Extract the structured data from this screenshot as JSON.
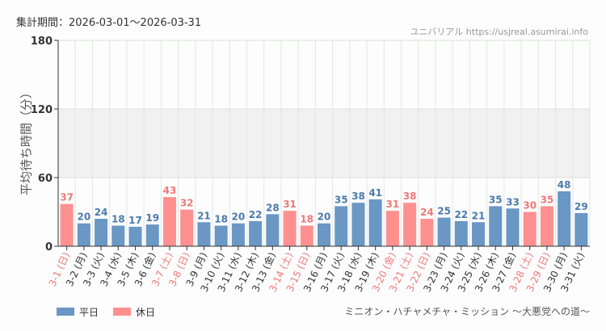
{
  "period_label": "集計期間：2026-03-01〜2026-03-31",
  "watermark": "ユニバリアル  https://usjreal.asumirai.info",
  "footer_title": "ミニオン・ハチャメチャ・ミッション 〜大悪党への道〜",
  "colors": {
    "weekday": "#6a97c4",
    "holiday": "#ff9090",
    "holiday_text": "#f07878"
  },
  "chart_data": {
    "type": "bar",
    "ylabel": "平均待ち時間（分）",
    "ylim": [
      0,
      180
    ],
    "yticks": [
      0,
      60,
      120,
      180
    ],
    "shaded_band": [
      60,
      120
    ],
    "grid": true,
    "legend_position": "bottom-left",
    "legend": [
      {
        "name": "平日",
        "color": "#6a97c4"
      },
      {
        "name": "休日",
        "color": "#ff9090"
      }
    ],
    "categories": [
      "3-1 (日)",
      "3-2 (月)",
      "3-3 (火)",
      "3-4 (水)",
      "3-5 (木)",
      "3-6 (金)",
      "3-7 (土)",
      "3-8 (日)",
      "3-9 (月)",
      "3-10 (火)",
      "3-11 (水)",
      "3-12 (木)",
      "3-13 (金)",
      "3-14 (土)",
      "3-15 (日)",
      "3-16 (月)",
      "3-17 (火)",
      "3-18 (水)",
      "3-19 (木)",
      "3-20 (金)",
      "3-21 (土)",
      "3-22 (日)",
      "3-23 (月)",
      "3-24 (火)",
      "3-25 (水)",
      "3-26 (木)",
      "3-27 (金)",
      "3-28 (土)",
      "3-29 (日)",
      "3-30 (月)",
      "3-31 (火)"
    ],
    "values": [
      37,
      20,
      24,
      18,
      17,
      19,
      43,
      32,
      21,
      18,
      20,
      22,
      28,
      31,
      18,
      20,
      35,
      38,
      41,
      31,
      38,
      24,
      25,
      22,
      21,
      35,
      33,
      30,
      35,
      48,
      29
    ],
    "holiday": [
      true,
      false,
      false,
      false,
      false,
      false,
      true,
      true,
      false,
      false,
      false,
      false,
      false,
      true,
      true,
      false,
      false,
      false,
      false,
      true,
      true,
      true,
      false,
      false,
      false,
      false,
      false,
      true,
      true,
      false,
      false
    ]
  }
}
